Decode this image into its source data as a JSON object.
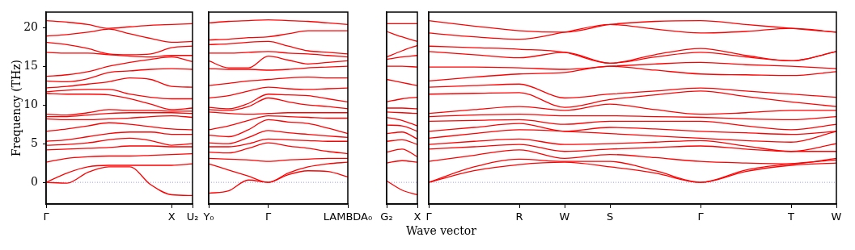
{
  "chart_data": [
    {
      "type": "line",
      "ylabel": "Frequency (THz)",
      "marker": "none",
      "grid": false,
      "categories": [
        "Γ",
        null,
        null,
        null,
        null,
        null,
        "X",
        "U₂"
      ],
      "ylim": [
        -2.8,
        22
      ],
      "yticks": [
        0,
        5,
        10,
        15,
        20
      ],
      "ref_lines": [
        {
          "axis": "y",
          "value": 0,
          "color": "#8080ff",
          "line_style": "dotted"
        }
      ],
      "series": [
        {
          "color": "#ff0000",
          "values": [
            20.9,
            20.7,
            20.4,
            19.9,
            20.1,
            20.3,
            20.4,
            20.5
          ]
        },
        {
          "color": "#ff0000",
          "values": [
            18.9,
            19.1,
            19.4,
            19.8,
            19.2,
            18.6,
            18.1,
            18.2
          ]
        },
        {
          "color": "#ff0000",
          "values": [
            18.1,
            17.8,
            17.3,
            16.6,
            16.5,
            16.6,
            17.4,
            17.6
          ]
        },
        {
          "color": "#ff0000",
          "values": [
            16.8,
            16.7,
            16.7,
            16.5,
            16.3,
            16.2,
            16.4,
            16.4
          ]
        },
        {
          "color": "#ff0000",
          "values": [
            13.7,
            13.9,
            14.3,
            15.0,
            15.5,
            15.9,
            16.2,
            15.6
          ]
        },
        {
          "color": "#ff0000",
          "values": [
            13.1,
            13.0,
            13.4,
            14.2,
            14.4,
            14.6,
            14.7,
            14.6
          ]
        },
        {
          "color": "#ff0000",
          "values": [
            12.2,
            12.4,
            12.7,
            13.0,
            13.5,
            13.3,
            12.4,
            12.3
          ]
        },
        {
          "color": "#ff0000",
          "values": [
            11.7,
            11.9,
            12.0,
            12.0,
            11.4,
            11.0,
            10.8,
            10.8
          ]
        },
        {
          "color": "#ff0000",
          "values": [
            11.5,
            11.4,
            11.4,
            11.3,
            10.8,
            10.1,
            9.4,
            9.6
          ]
        },
        {
          "color": "#ff0000",
          "values": [
            8.8,
            8.7,
            9.0,
            9.4,
            9.3,
            9.3,
            9.2,
            9.2
          ]
        },
        {
          "color": "#ff0000",
          "values": [
            8.5,
            8.5,
            8.7,
            8.9,
            9.0,
            9.0,
            9.0,
            8.9
          ]
        },
        {
          "color": "#ff0000",
          "values": [
            8.2,
            8.1,
            8.1,
            8.2,
            8.3,
            8.5,
            8.6,
            8.4
          ]
        },
        {
          "color": "#ff0000",
          "values": [
            6.6,
            6.9,
            7.3,
            7.7,
            7.5,
            7.2,
            6.9,
            6.8
          ]
        },
        {
          "color": "#ff0000",
          "values": [
            5.3,
            5.5,
            5.9,
            6.3,
            6.5,
            6.5,
            6.2,
            6.2
          ]
        },
        {
          "color": "#ff0000",
          "values": [
            4.8,
            4.9,
            5.1,
            5.5,
            5.7,
            5.4,
            4.8,
            5.0
          ]
        },
        {
          "color": "#ff0000",
          "values": [
            4.2,
            4.3,
            4.4,
            4.5,
            4.7,
            4.7,
            4.6,
            4.6
          ]
        },
        {
          "color": "#ff0000",
          "values": [
            2.6,
            3.1,
            3.3,
            3.4,
            3.4,
            3.5,
            3.6,
            3.7
          ]
        },
        {
          "color": "#ff0000",
          "values": [
            0,
            1.2,
            2.0,
            2.2,
            2.2,
            2.2,
            2.2,
            2.4
          ]
        },
        {
          "color": "#ff0000",
          "values": [
            0,
            -0.1,
            1.3,
            2.0,
            2.0,
            -0.3,
            -1.6,
            -1.7
          ]
        }
      ]
    },
    {
      "type": "line",
      "marker": "none",
      "grid": false,
      "tick_labels": "x",
      "categories": [
        "Y₀",
        null,
        null,
        "Γ",
        null,
        null,
        null,
        "LAMBDA₀"
      ],
      "ylim": [
        -2.8,
        22
      ],
      "yticks": [
        0,
        5,
        10,
        15,
        20
      ],
      "ref_lines": [
        {
          "axis": "y",
          "value": 0,
          "color": "#8080ff",
          "line_style": "dotted"
        }
      ],
      "series": [
        {
          "color": "#ff0000",
          "values": [
            20.6,
            20.8,
            20.9,
            21.0,
            20.9,
            20.8,
            20.6,
            20.4
          ]
        },
        {
          "color": "#ff0000",
          "values": [
            18.4,
            18.5,
            18.7,
            18.8,
            19.2,
            19.6,
            19.6,
            19.6
          ]
        },
        {
          "color": "#ff0000",
          "values": [
            17.8,
            17.9,
            18.1,
            18.2,
            17.6,
            17.0,
            16.8,
            16.6
          ]
        },
        {
          "color": "#ff0000",
          "values": [
            16.7,
            16.7,
            16.8,
            16.9,
            16.7,
            16.6,
            16.4,
            16.2
          ]
        },
        {
          "color": "#ff0000",
          "values": [
            15.7,
            14.8,
            14.8,
            16.3,
            15.8,
            15.3,
            15.5,
            15.7
          ]
        },
        {
          "color": "#ff0000",
          "values": [
            14.7,
            14.6,
            14.6,
            14.5,
            14.6,
            14.8,
            14.9,
            15.0
          ]
        },
        {
          "color": "#ff0000",
          "values": [
            12.5,
            12.8,
            13.1,
            13.3,
            13.5,
            13.6,
            13.5,
            13.5
          ]
        },
        {
          "color": "#ff0000",
          "values": [
            10.9,
            11.2,
            11.8,
            12.3,
            12.1,
            12.0,
            12.1,
            12.2
          ]
        },
        {
          "color": "#ff0000",
          "values": [
            9.7,
            9.5,
            10.2,
            11.4,
            11.3,
            11.2,
            10.8,
            10.4
          ]
        },
        {
          "color": "#ff0000",
          "values": [
            9.4,
            9.3,
            9.8,
            10.9,
            10.4,
            10.0,
            9.8,
            9.5
          ]
        },
        {
          "color": "#ff0000",
          "values": [
            9.1,
            8.9,
            8.8,
            8.9,
            9.0,
            9.0,
            9.0,
            9.0
          ]
        },
        {
          "color": "#ff0000",
          "values": [
            6.8,
            7.3,
            8.0,
            8.6,
            8.5,
            8.4,
            8.3,
            8.3
          ]
        },
        {
          "color": "#ff0000",
          "values": [
            6.1,
            5.9,
            6.8,
            8.1,
            7.8,
            7.6,
            7.0,
            6.3
          ]
        },
        {
          "color": "#ff0000",
          "values": [
            5.1,
            5.0,
            5.8,
            6.7,
            6.4,
            6.2,
            6.0,
            5.8
          ]
        },
        {
          "color": "#ff0000",
          "values": [
            4.6,
            4.6,
            5.0,
            5.6,
            5.5,
            5.4,
            5.3,
            5.3
          ]
        },
        {
          "color": "#ff0000",
          "values": [
            3.9,
            3.8,
            4.4,
            5.1,
            4.7,
            4.4,
            4.0,
            3.7
          ]
        },
        {
          "color": "#ff0000",
          "values": [
            3.1,
            3.0,
            2.9,
            2.7,
            2.9,
            3.0,
            3.1,
            3.1
          ]
        },
        {
          "color": "#ff0000",
          "values": [
            2.4,
            1.6,
            0.8,
            0,
            1.2,
            2.0,
            2.4,
            2.6
          ]
        },
        {
          "color": "#ff0000",
          "values": [
            -1.4,
            -1.1,
            0.3,
            0,
            1.0,
            1.5,
            1.4,
            0.7
          ]
        }
      ]
    },
    {
      "type": "line",
      "marker": "none",
      "grid": false,
      "tick_labels": "x",
      "categories": [
        "G₂",
        null,
        "X"
      ],
      "ylim": [
        -2.8,
        22
      ],
      "yticks": [
        0,
        5,
        10,
        15,
        20
      ],
      "ref_lines": [
        {
          "axis": "y",
          "value": 0,
          "color": "#8080ff",
          "line_style": "dotted"
        }
      ],
      "series": [
        {
          "color": "#ff0000",
          "values": [
            20.5,
            20.5,
            20.5
          ]
        },
        {
          "color": "#ff0000",
          "values": [
            19.5,
            18.8,
            18.2
          ]
        },
        {
          "color": "#ff0000",
          "values": [
            16.2,
            17.0,
            17.7
          ]
        },
        {
          "color": "#ff0000",
          "values": [
            15.9,
            16.2,
            16.4
          ]
        },
        {
          "color": "#ff0000",
          "values": [
            15.0,
            15.0,
            14.9
          ]
        },
        {
          "color": "#ff0000",
          "values": [
            13.3,
            12.9,
            12.5
          ]
        },
        {
          "color": "#ff0000",
          "values": [
            10.4,
            10.8,
            11.0
          ]
        },
        {
          "color": "#ff0000",
          "values": [
            9.6,
            9.6,
            9.5
          ]
        },
        {
          "color": "#ff0000",
          "values": [
            9.1,
            9.0,
            8.9
          ]
        },
        {
          "color": "#ff0000",
          "values": [
            8.4,
            8.0,
            7.3
          ]
        },
        {
          "color": "#ff0000",
          "values": [
            7.4,
            7.3,
            6.6
          ]
        },
        {
          "color": "#ff0000",
          "values": [
            6.3,
            6.5,
            5.6
          ]
        },
        {
          "color": "#ff0000",
          "values": [
            5.3,
            5.5,
            4.9
          ]
        },
        {
          "color": "#ff0000",
          "values": [
            3.9,
            4.3,
            3.3
          ]
        },
        {
          "color": "#ff0000",
          "values": [
            2.5,
            2.8,
            2.6
          ]
        },
        {
          "color": "#ff0000",
          "values": [
            0.2,
            -1.0,
            -1.6
          ]
        }
      ]
    },
    {
      "type": "line",
      "xlabel": "Wave vector",
      "marker": "none",
      "grid": false,
      "tick_labels": "x",
      "categories": [
        "Γ",
        null,
        "R",
        "W",
        "S",
        null,
        "Γ",
        null,
        "T",
        "W"
      ],
      "ylim": [
        -2.8,
        22
      ],
      "yticks": [
        0,
        5,
        10,
        15,
        20
      ],
      "ref_lines": [
        {
          "axis": "y",
          "value": 0,
          "color": "#8080ff",
          "line_style": "dotted"
        }
      ],
      "series": [
        {
          "color": "#ff0000",
          "values": [
            20.9,
            20.2,
            19.6,
            19.4,
            20.4,
            20.8,
            20.9,
            20.4,
            19.9,
            19.4
          ]
        },
        {
          "color": "#ff0000",
          "values": [
            19.3,
            18.8,
            18.5,
            19.4,
            20.4,
            19.8,
            19.3,
            19.5,
            19.9,
            19.4
          ]
        },
        {
          "color": "#ff0000",
          "values": [
            17.6,
            17.4,
            17.2,
            16.8,
            15.4,
            16.5,
            17.3,
            16.4,
            15.7,
            16.9
          ]
        },
        {
          "color": "#ff0000",
          "values": [
            16.9,
            16.5,
            16.1,
            16.8,
            15.4,
            16.2,
            16.8,
            16.2,
            15.7,
            16.9
          ]
        },
        {
          "color": "#ff0000",
          "values": [
            14.9,
            14.9,
            14.8,
            14.6,
            15.0,
            15.3,
            15.5,
            15.2,
            15.0,
            14.7
          ]
        },
        {
          "color": "#ff0000",
          "values": [
            13.1,
            13.6,
            14.0,
            14.2,
            15.0,
            14.5,
            14.0,
            13.9,
            13.8,
            14.3
          ]
        },
        {
          "color": "#ff0000",
          "values": [
            12.3,
            12.5,
            12.7,
            10.9,
            11.4,
            11.8,
            12.2,
            11.8,
            11.4,
            11.0
          ]
        },
        {
          "color": "#ff0000",
          "values": [
            11.4,
            11.5,
            11.6,
            9.7,
            10.7,
            11.3,
            11.8,
            11.1,
            10.4,
            9.8
          ]
        },
        {
          "color": "#ff0000",
          "values": [
            8.9,
            9.4,
            9.8,
            9.3,
            10.1,
            9.4,
            8.8,
            9.0,
            9.3,
            9.3
          ]
        },
        {
          "color": "#ff0000",
          "values": [
            8.5,
            8.7,
            8.8,
            8.6,
            8.6,
            8.5,
            8.4,
            8.2,
            8.1,
            8.5
          ]
        },
        {
          "color": "#ff0000",
          "values": [
            7.9,
            8.0,
            8.1,
            7.5,
            7.9,
            7.9,
            7.9,
            7.3,
            6.8,
            7.5
          ]
        },
        {
          "color": "#ff0000",
          "values": [
            6.6,
            7.1,
            7.6,
            6.6,
            7.1,
            6.9,
            6.6,
            6.4,
            6.2,
            6.6
          ]
        },
        {
          "color": "#ff0000",
          "values": [
            5.7,
            6.3,
            6.8,
            6.6,
            6.3,
            6.0,
            5.7,
            5.4,
            5.2,
            6.6
          ]
        },
        {
          "color": "#ff0000",
          "values": [
            4.9,
            5.3,
            5.6,
            4.9,
            5.0,
            5.2,
            5.4,
            4.7,
            4.0,
            5.0
          ]
        },
        {
          "color": "#ff0000",
          "values": [
            4.3,
            4.6,
            4.9,
            4.0,
            4.3,
            4.5,
            4.7,
            4.3,
            4.0,
            4.0
          ]
        },
        {
          "color": "#ff0000",
          "values": [
            2.7,
            3.5,
            4.2,
            3.1,
            3.6,
            3.2,
            2.7,
            2.5,
            2.4,
            3.1
          ]
        },
        {
          "color": "#ff0000",
          "values": [
            0,
            2.0,
            3.0,
            2.7,
            2.7,
            1.5,
            0,
            1.6,
            2.4,
            2.9
          ]
        },
        {
          "color": "#ff0000",
          "values": [
            0,
            1.5,
            2.3,
            2.6,
            2.0,
            1.2,
            0,
            1.4,
            2.2,
            2.5
          ]
        }
      ]
    }
  ]
}
